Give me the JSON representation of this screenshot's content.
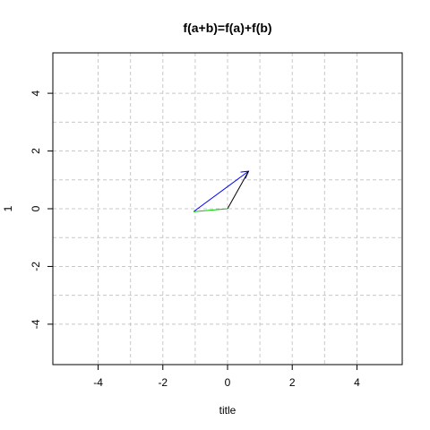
{
  "chart_data": {
    "type": "line",
    "title": "f(a+b)=f(a)+f(b)",
    "xlabel": "title",
    "ylabel": "1",
    "xlim": [
      -5.4,
      5.4
    ],
    "ylim": [
      -5.4,
      5.4
    ],
    "x_ticks": [
      -4,
      -2,
      0,
      2,
      4
    ],
    "y_ticks": [
      -4,
      -2,
      0,
      2,
      4
    ],
    "x_tick_labels": [
      "-4",
      "-2",
      "0",
      "2",
      "4"
    ],
    "y_tick_labels": [
      "-4",
      "-2",
      "0",
      "2",
      "4"
    ],
    "grid": true,
    "grid_x": [
      -4,
      -3,
      -2,
      -1,
      0,
      1,
      2,
      3,
      4
    ],
    "grid_y": [
      -4,
      -3,
      -2,
      -1,
      0,
      1,
      2,
      3,
      4
    ],
    "arrows": [
      {
        "from": [
          -1.05,
          -0.1
        ],
        "to": [
          0.65,
          1.3
        ],
        "color": "#0000ff",
        "head": true
      },
      {
        "from": [
          0,
          0
        ],
        "to": [
          0.65,
          1.3
        ],
        "color": "#000000",
        "head": false
      },
      {
        "from": [
          -1.05,
          -0.1
        ],
        "to": [
          0,
          0
        ],
        "color": "#00cc00",
        "head": false
      }
    ]
  }
}
